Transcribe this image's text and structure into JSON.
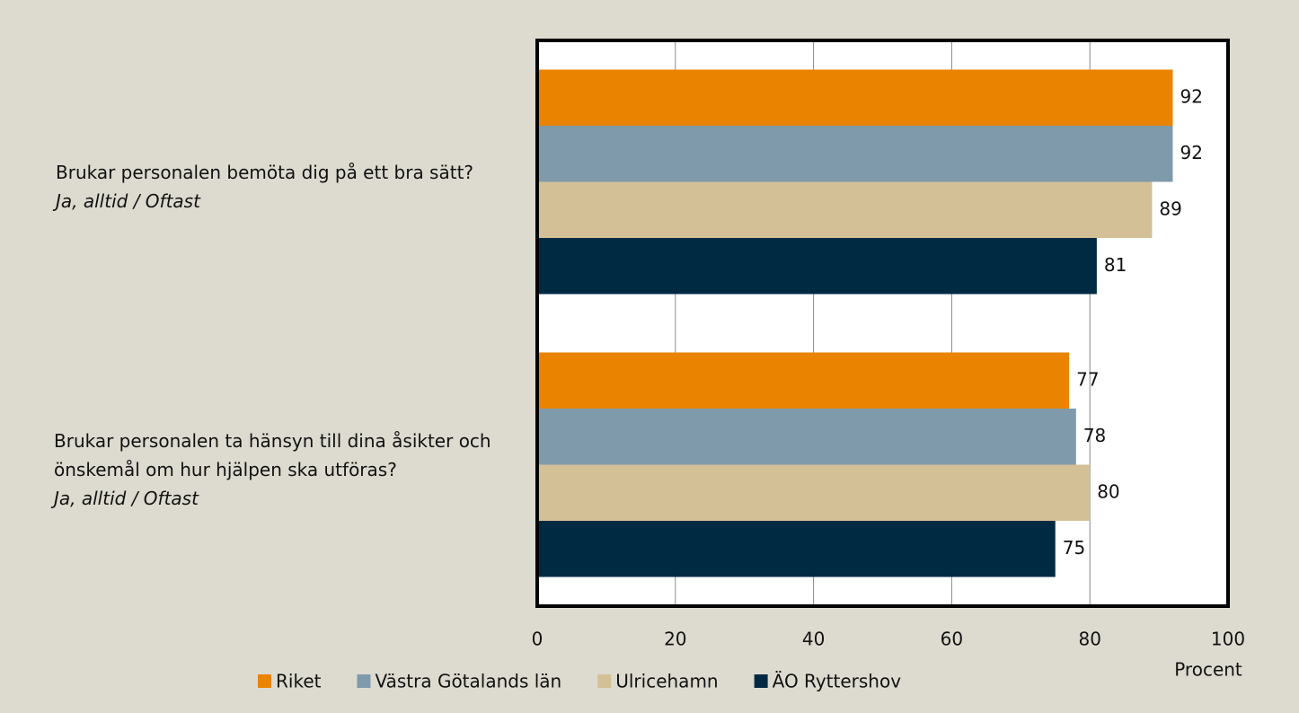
{
  "chart_data": {
    "type": "hbar",
    "categories": [
      "Brukar personalen bemöta dig på ett bra sätt?",
      "Brukar personalen ta hänsyn till dina åsikter och önskemål om hur hjälpen ska utföras?"
    ],
    "category_notes": [
      "Ja, alltid / Oftast",
      "Ja, alltid / Oftast"
    ],
    "series": [
      {
        "name": "Riket",
        "color": "#e98300",
        "values": [
          92,
          77
        ]
      },
      {
        "name": "Västra Götalands län",
        "color": "#7f9aaa",
        "values": [
          92,
          78
        ]
      },
      {
        "name": "Ulricehamn",
        "color": "#d4c096",
        "values": [
          89,
          80
        ]
      },
      {
        "name": "ÄO Ryttershov",
        "color": "#002a42",
        "values": [
          81,
          75
        ]
      }
    ],
    "xlim": [
      0,
      100
    ],
    "xticks": [
      0,
      20,
      40,
      60,
      80,
      100
    ],
    "xlabel": "Procent",
    "grid": true,
    "legend": "bottom"
  }
}
